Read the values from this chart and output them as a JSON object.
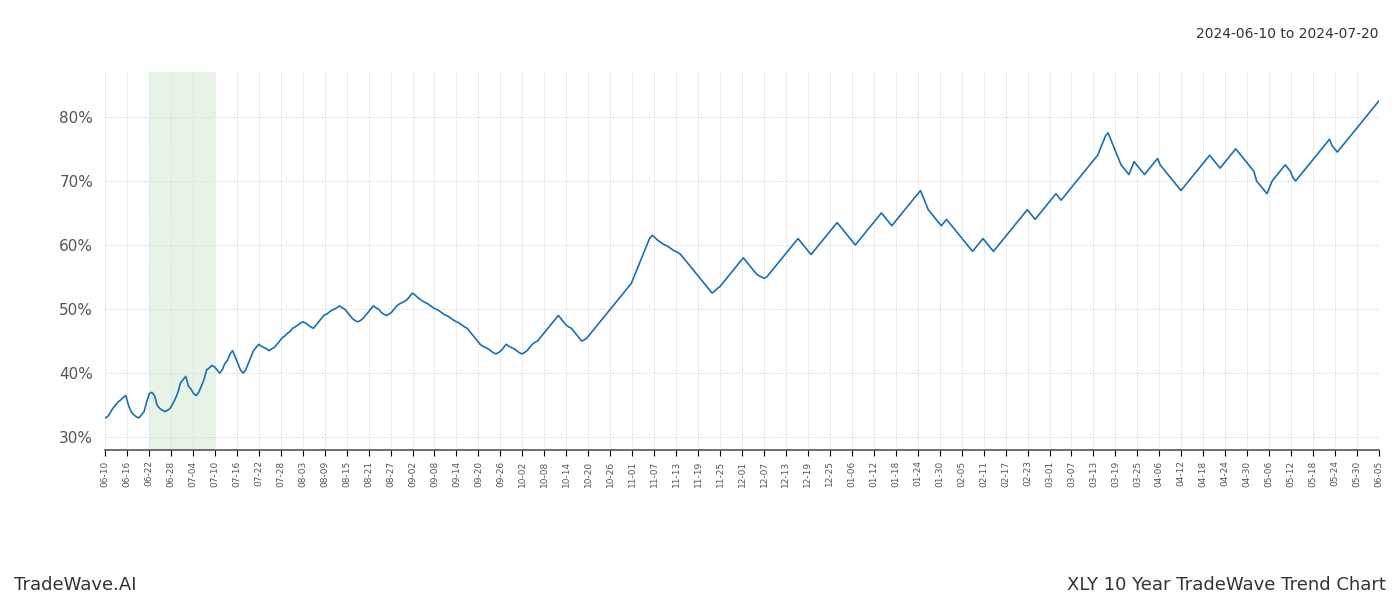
{
  "title_date_range": "2024-06-10 to 2024-07-20",
  "footer_left": "TradeWave.AI",
  "footer_right": "XLY 10 Year TradeWave Trend Chart",
  "line_color": "#1a6faf",
  "line_width": 1.2,
  "background_color": "#ffffff",
  "grid_color": "#cccccc",
  "highlight_color": "#c8e6c9",
  "highlight_alpha": 0.45,
  "highlight_x_start_label": "06-22",
  "highlight_x_end_label": "07-10",
  "ylim": [
    28,
    87
  ],
  "yticks": [
    30,
    40,
    50,
    60,
    70,
    80
  ],
  "ytick_labels": [
    "30%",
    "40%",
    "50%",
    "60%",
    "70%",
    "80%"
  ],
  "x_tick_labels": [
    "06-10",
    "06-16",
    "06-22",
    "06-28",
    "07-04",
    "07-10",
    "07-16",
    "07-22",
    "07-28",
    "08-03",
    "08-09",
    "08-15",
    "08-21",
    "08-27",
    "09-02",
    "09-08",
    "09-14",
    "09-20",
    "09-26",
    "10-02",
    "10-08",
    "10-14",
    "10-20",
    "10-26",
    "11-01",
    "11-07",
    "11-13",
    "11-19",
    "11-25",
    "12-01",
    "12-07",
    "12-13",
    "12-19",
    "12-25",
    "01-06",
    "01-12",
    "01-18",
    "01-24",
    "01-30",
    "02-05",
    "02-11",
    "02-17",
    "02-23",
    "03-01",
    "03-07",
    "03-13",
    "03-19",
    "03-25",
    "04-06",
    "04-12",
    "04-18",
    "04-24",
    "04-30",
    "05-06",
    "05-12",
    "05-18",
    "05-24",
    "05-30",
    "06-05"
  ],
  "x_tick_spacing": 6,
  "total_trading_days": 522,
  "y_values": [
    33.0,
    33.2,
    33.8,
    34.5,
    35.0,
    35.5,
    35.8,
    36.2,
    36.5,
    35.0,
    34.0,
    33.5,
    33.2,
    33.0,
    33.5,
    34.0,
    35.5,
    36.8,
    37.0,
    36.5,
    35.0,
    34.5,
    34.2,
    34.0,
    34.2,
    34.5,
    35.2,
    36.0,
    37.0,
    38.5,
    39.0,
    39.5,
    38.0,
    37.5,
    36.8,
    36.5,
    37.0,
    38.0,
    39.0,
    40.5,
    40.8,
    41.2,
    41.0,
    40.5,
    40.0,
    40.5,
    41.5,
    42.0,
    43.0,
    43.5,
    42.5,
    41.5,
    40.5,
    40.0,
    40.5,
    41.5,
    42.5,
    43.5,
    44.0,
    44.5,
    44.2,
    44.0,
    43.8,
    43.5,
    43.8,
    44.0,
    44.5,
    45.0,
    45.5,
    45.8,
    46.2,
    46.5,
    47.0,
    47.2,
    47.5,
    47.8,
    48.0,
    47.8,
    47.5,
    47.2,
    47.0,
    47.5,
    48.0,
    48.5,
    49.0,
    49.2,
    49.5,
    49.8,
    50.0,
    50.2,
    50.5,
    50.2,
    50.0,
    49.5,
    49.0,
    48.5,
    48.2,
    48.0,
    48.2,
    48.5,
    49.0,
    49.5,
    50.0,
    50.5,
    50.2,
    50.0,
    49.5,
    49.2,
    49.0,
    49.2,
    49.5,
    50.0,
    50.5,
    50.8,
    51.0,
    51.2,
    51.5,
    52.0,
    52.5,
    52.2,
    51.8,
    51.5,
    51.2,
    51.0,
    50.8,
    50.5,
    50.2,
    50.0,
    49.8,
    49.5,
    49.2,
    49.0,
    48.8,
    48.5,
    48.2,
    48.0,
    47.8,
    47.5,
    47.2,
    47.0,
    46.5,
    46.0,
    45.5,
    45.0,
    44.5,
    44.2,
    44.0,
    43.8,
    43.5,
    43.2,
    43.0,
    43.2,
    43.5,
    44.0,
    44.5,
    44.2,
    44.0,
    43.8,
    43.5,
    43.2,
    43.0,
    43.2,
    43.5,
    44.0,
    44.5,
    44.8,
    45.0,
    45.5,
    46.0,
    46.5,
    47.0,
    47.5,
    48.0,
    48.5,
    49.0,
    48.5,
    48.0,
    47.5,
    47.2,
    47.0,
    46.5,
    46.0,
    45.5,
    45.0,
    45.2,
    45.5,
    46.0,
    46.5,
    47.0,
    47.5,
    48.0,
    48.5,
    49.0,
    49.5,
    50.0,
    50.5,
    51.0,
    51.5,
    52.0,
    52.5,
    53.0,
    53.5,
    54.0,
    55.0,
    56.0,
    57.0,
    58.0,
    59.0,
    60.0,
    61.0,
    61.5,
    61.2,
    60.8,
    60.5,
    60.2,
    60.0,
    59.8,
    59.5,
    59.2,
    59.0,
    58.8,
    58.5,
    58.0,
    57.5,
    57.0,
    56.5,
    56.0,
    55.5,
    55.0,
    54.5,
    54.0,
    53.5,
    53.0,
    52.5,
    52.8,
    53.2,
    53.5,
    54.0,
    54.5,
    55.0,
    55.5,
    56.0,
    56.5,
    57.0,
    57.5,
    58.0,
    57.5,
    57.0,
    56.5,
    56.0,
    55.5,
    55.2,
    55.0,
    54.8,
    55.0,
    55.5,
    56.0,
    56.5,
    57.0,
    57.5,
    58.0,
    58.5,
    59.0,
    59.5,
    60.0,
    60.5,
    61.0,
    60.5,
    60.0,
    59.5,
    59.0,
    58.5,
    59.0,
    59.5,
    60.0,
    60.5,
    61.0,
    61.5,
    62.0,
    62.5,
    63.0,
    63.5,
    63.0,
    62.5,
    62.0,
    61.5,
    61.0,
    60.5,
    60.0,
    60.5,
    61.0,
    61.5,
    62.0,
    62.5,
    63.0,
    63.5,
    64.0,
    64.5,
    65.0,
    64.5,
    64.0,
    63.5,
    63.0,
    63.5,
    64.0,
    64.5,
    65.0,
    65.5,
    66.0,
    66.5,
    67.0,
    67.5,
    68.0,
    68.5,
    67.5,
    66.5,
    65.5,
    65.0,
    64.5,
    64.0,
    63.5,
    63.0,
    63.5,
    64.0,
    63.5,
    63.0,
    62.5,
    62.0,
    61.5,
    61.0,
    60.5,
    60.0,
    59.5,
    59.0,
    59.5,
    60.0,
    60.5,
    61.0,
    60.5,
    60.0,
    59.5,
    59.0,
    59.5,
    60.0,
    60.5,
    61.0,
    61.5,
    62.0,
    62.5,
    63.0,
    63.5,
    64.0,
    64.5,
    65.0,
    65.5,
    65.0,
    64.5,
    64.0,
    64.5,
    65.0,
    65.5,
    66.0,
    66.5,
    67.0,
    67.5,
    68.0,
    67.5,
    67.0,
    67.5,
    68.0,
    68.5,
    69.0,
    69.5,
    70.0,
    70.5,
    71.0,
    71.5,
    72.0,
    72.5,
    73.0,
    73.5,
    74.0,
    75.0,
    76.0,
    77.0,
    77.5,
    76.5,
    75.5,
    74.5,
    73.5,
    72.5,
    72.0,
    71.5,
    71.0,
    72.0,
    73.0,
    72.5,
    72.0,
    71.5,
    71.0,
    71.5,
    72.0,
    72.5,
    73.0,
    73.5,
    72.5,
    72.0,
    71.5,
    71.0,
    70.5,
    70.0,
    69.5,
    69.0,
    68.5,
    69.0,
    69.5,
    70.0,
    70.5,
    71.0,
    71.5,
    72.0,
    72.5,
    73.0,
    73.5,
    74.0,
    73.5,
    73.0,
    72.5,
    72.0,
    72.5,
    73.0,
    73.5,
    74.0,
    74.5,
    75.0,
    74.5,
    74.0,
    73.5,
    73.0,
    72.5,
    72.0,
    71.5,
    70.0,
    69.5,
    69.0,
    68.5,
    68.0,
    69.0,
    70.0,
    70.5,
    71.0,
    71.5,
    72.0,
    72.5,
    72.0,
    71.5,
    70.5,
    70.0,
    70.5,
    71.0,
    71.5,
    72.0,
    72.5,
    73.0,
    73.5,
    74.0,
    74.5,
    75.0,
    75.5,
    76.0,
    76.5,
    75.5,
    75.0,
    74.5,
    75.0,
    75.5,
    76.0,
    76.5,
    77.0,
    77.5,
    78.0,
    78.5,
    79.0,
    79.5,
    80.0,
    80.5,
    81.0,
    81.5,
    82.0,
    82.5
  ]
}
